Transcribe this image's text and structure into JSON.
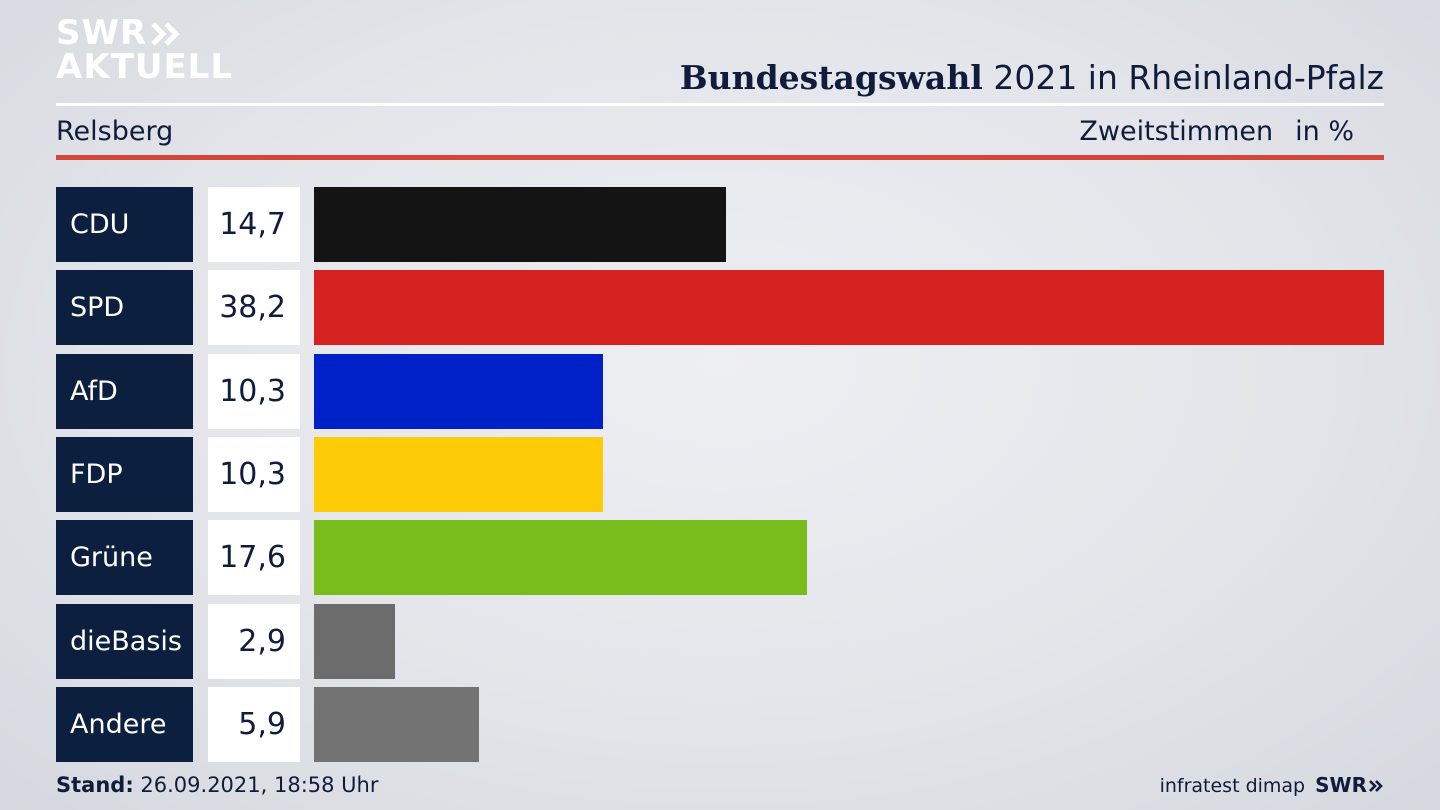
{
  "logo": {
    "line1": "SWR",
    "line2": "AKTUELL"
  },
  "header": {
    "title_bold": "Bundestagswahl",
    "title_rest": " 2021 in Rheinland-Pfalz",
    "region": "Relsberg",
    "vote_type": "Zweitstimmen",
    "unit": "in %"
  },
  "footer": {
    "stand_label": "Stand:",
    "stand_value": " 26.09.2021, 18:58 Uhr",
    "source": "infratest dimap",
    "brand": "SWR"
  },
  "colors": {
    "white_rule": "#ffffff",
    "red_rule": "#d3463a",
    "label_bg": "#0d1f3f"
  },
  "chart_data": {
    "type": "bar",
    "orientation": "horizontal",
    "categories": [
      "CDU",
      "SPD",
      "AfD",
      "FDP",
      "Grüne",
      "dieBasis",
      "Andere"
    ],
    "values": [
      14.7,
      38.2,
      10.3,
      10.3,
      17.6,
      2.9,
      5.9
    ],
    "value_labels": [
      "14,7",
      "38,2",
      "10,3",
      "10,3",
      "17,6",
      "2,9",
      "5,9"
    ],
    "colors": [
      "#141414",
      "#d62121",
      "#0021c8",
      "#fdcc07",
      "#78bd1b",
      "#6c6c6c",
      "#737373"
    ],
    "xlim": [
      0,
      38.2
    ],
    "grid": false,
    "legend": "none"
  }
}
